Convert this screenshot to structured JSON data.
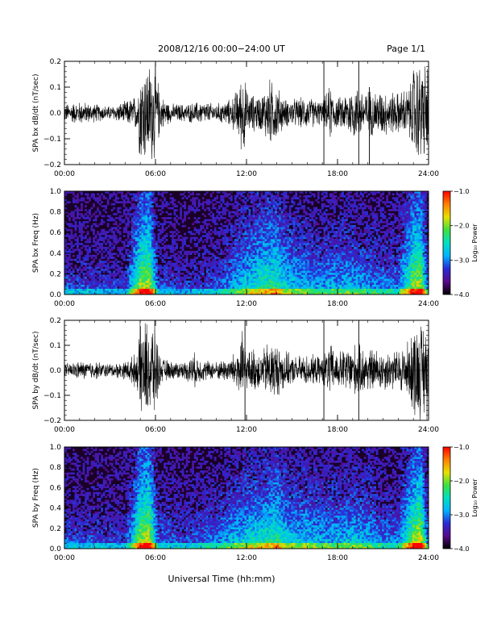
{
  "header": {
    "title": "2008/12/16  00:00−24:00 UT",
    "page": "Page 1/1"
  },
  "xaxis_label": "Universal Time (hh:mm)",
  "colors": {
    "trace": "#000000",
    "spectrogram_background": "#1a0026",
    "colormap": [
      "#000000",
      "#5a0a8a",
      "#2a2ad8",
      "#00b4ff",
      "#00e0c0",
      "#40e040",
      "#e8e000",
      "#ff8000",
      "#ff0000"
    ]
  },
  "chart_data": [
    {
      "type": "line",
      "name": "bx-timeseries",
      "ylabel": "SPA bx dB/dt (nT/sec)",
      "xlim": [
        0,
        24
      ],
      "ylim": [
        -0.2,
        0.2
      ],
      "xticks": [
        "00:00",
        "06:00",
        "12:00",
        "18:00",
        "24:00"
      ],
      "yticks": [
        "−0.2",
        "−0.1",
        "0.0",
        "0.1",
        "0.2"
      ],
      "yticks_values": [
        -0.2,
        -0.1,
        0.0,
        0.1,
        0.2
      ],
      "grid": false,
      "envelope": {
        "hours": [
          0,
          1,
          2,
          3,
          4,
          4.8,
          5.0,
          5.5,
          6.0,
          6.3,
          7,
          8,
          9,
          10,
          11,
          11.5,
          11.8,
          12.0,
          12.3,
          13,
          13.5,
          14,
          14.5,
          15,
          16,
          17,
          17.5,
          18,
          19,
          20,
          21,
          22,
          22.8,
          23.0,
          23.5,
          24
        ],
        "amplitude": [
          0.04,
          0.05,
          0.04,
          0.03,
          0.05,
          0.08,
          0.22,
          0.22,
          0.22,
          0.08,
          0.04,
          0.04,
          0.05,
          0.04,
          0.06,
          0.12,
          0.2,
          0.1,
          0.08,
          0.08,
          0.15,
          0.12,
          0.06,
          0.06,
          0.07,
          0.05,
          0.12,
          0.06,
          0.12,
          0.1,
          0.1,
          0.09,
          0.12,
          0.22,
          0.22,
          0.22
        ]
      },
      "spikes": [
        {
          "hour": 17.1,
          "ymin": -0.2,
          "ymax": 0.2
        },
        {
          "hour": 19.4,
          "ymin": -0.2,
          "ymax": 0.2
        },
        {
          "hour": 20.1,
          "ymin": -0.2,
          "ymax": 0.1
        }
      ]
    },
    {
      "type": "heatmap",
      "name": "bx-spectrogram",
      "ylabel": "SPA bx Freq (Hz)",
      "xlim": [
        0,
        24
      ],
      "ylim": [
        0.0,
        1.0
      ],
      "xticks": [
        "00:00",
        "06:00",
        "12:00",
        "18:00",
        "24:00"
      ],
      "yticks": [
        "0.0",
        "0.2",
        "0.4",
        "0.6",
        "0.8",
        "1.0"
      ],
      "yticks_values": [
        0.0,
        0.2,
        0.4,
        0.6,
        0.8,
        1.0
      ],
      "colorbar": {
        "label": "Log₁₀ Power",
        "range": [
          -4.0,
          -1.0
        ],
        "ticks": [
          "−1.0",
          "−2.0",
          "−3.0",
          "−4.0"
        ],
        "tick_values": [
          -1.0,
          -2.0,
          -3.0,
          -4.0
        ]
      },
      "activity": {
        "hours": [
          0,
          2,
          4,
          5.0,
          5.6,
          6.2,
          8,
          10,
          11,
          12,
          13,
          14,
          14.5,
          15,
          16,
          17,
          18,
          19,
          20,
          21,
          22,
          23.0,
          23.5,
          24
        ],
        "level": [
          0.25,
          0.22,
          0.2,
          0.85,
          0.9,
          0.25,
          0.2,
          0.25,
          0.4,
          0.55,
          0.65,
          0.7,
          0.55,
          0.5,
          0.45,
          0.4,
          0.45,
          0.45,
          0.4,
          0.35,
          0.35,
          0.85,
          0.9,
          0.3
        ]
      }
    },
    {
      "type": "line",
      "name": "by-timeseries",
      "ylabel": "SPA by dB/dt (nT/sec)",
      "xlim": [
        0,
        24
      ],
      "ylim": [
        -0.2,
        0.2
      ],
      "xticks": [
        "00:00",
        "06:00",
        "12:00",
        "18:00",
        "24:00"
      ],
      "yticks": [
        "−0.2",
        "−0.1",
        "0.0",
        "0.1",
        "0.2"
      ],
      "yticks_values": [
        -0.2,
        -0.1,
        0.0,
        0.1,
        0.2
      ],
      "grid": false,
      "envelope": {
        "hours": [
          0,
          1,
          2,
          3,
          4,
          4.8,
          5.0,
          5.5,
          6.0,
          6.3,
          7,
          8,
          8.5,
          9,
          10,
          11,
          11.5,
          11.8,
          12.0,
          12.5,
          13,
          13.5,
          14,
          15,
          16,
          17,
          17.5,
          18,
          19,
          20,
          21,
          22,
          22.8,
          23.0,
          23.5,
          24
        ],
        "amplitude": [
          0.03,
          0.04,
          0.04,
          0.03,
          0.04,
          0.08,
          0.22,
          0.22,
          0.22,
          0.06,
          0.04,
          0.04,
          0.08,
          0.05,
          0.04,
          0.06,
          0.12,
          0.18,
          0.08,
          0.1,
          0.08,
          0.14,
          0.12,
          0.06,
          0.07,
          0.06,
          0.12,
          0.08,
          0.12,
          0.1,
          0.09,
          0.09,
          0.14,
          0.22,
          0.22,
          0.22
        ]
      },
      "spikes": [
        {
          "hour": 11.9,
          "ymin": -0.2,
          "ymax": 0.2
        },
        {
          "hour": 17.1,
          "ymin": -0.2,
          "ymax": 0.2
        },
        {
          "hour": 19.4,
          "ymin": -0.2,
          "ymax": 0.2
        }
      ]
    },
    {
      "type": "heatmap",
      "name": "by-spectrogram",
      "ylabel": "SPA by Freq (Hz)",
      "xlim": [
        0,
        24
      ],
      "ylim": [
        0.0,
        1.0
      ],
      "xticks": [
        "00:00",
        "06:00",
        "12:00",
        "18:00",
        "24:00"
      ],
      "yticks": [
        "0.0",
        "0.2",
        "0.4",
        "0.6",
        "0.8",
        "1.0"
      ],
      "yticks_values": [
        0.0,
        0.2,
        0.4,
        0.6,
        0.8,
        1.0
      ],
      "colorbar": {
        "label": "Log₁₀ Power",
        "range": [
          -4.0,
          -1.0
        ],
        "ticks": [
          "−1.0",
          "−2.0",
          "−3.0",
          "−4.0"
        ],
        "tick_values": [
          -1.0,
          -2.0,
          -3.0,
          -4.0
        ]
      },
      "activity": {
        "hours": [
          0,
          2,
          4,
          5.0,
          5.6,
          6.2,
          8,
          9,
          10,
          11,
          12,
          13,
          14,
          14.5,
          15,
          16,
          17,
          18,
          19,
          20,
          21,
          22,
          23.0,
          23.5,
          24
        ],
        "level": [
          0.25,
          0.25,
          0.2,
          0.85,
          0.95,
          0.3,
          0.25,
          0.3,
          0.35,
          0.45,
          0.55,
          0.6,
          0.7,
          0.55,
          0.5,
          0.5,
          0.45,
          0.45,
          0.5,
          0.45,
          0.35,
          0.35,
          0.85,
          0.95,
          0.3
        ]
      }
    }
  ]
}
